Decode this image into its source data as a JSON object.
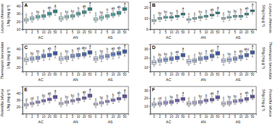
{
  "chart_data": [
    {
      "type": "box",
      "title": "A",
      "species": "Leymus chinensis",
      "ylabel": "LNg (mg g⁻¹)",
      "categories": [
        "0",
        "2",
        "5",
        "10",
        "20",
        "50",
        "0",
        "2",
        "5",
        "10",
        "20",
        "50",
        "0",
        "2",
        "5",
        "10",
        "20",
        "50"
      ],
      "groups": [
        "AC",
        "AN",
        "AS"
      ],
      "ylim": [
        10,
        45
      ],
      "yticks": [
        10,
        20,
        30,
        40
      ],
      "boxes": [
        [
          18,
          20,
          22,
          24,
          26
        ],
        [
          19,
          22,
          24,
          26,
          28
        ],
        [
          22,
          24,
          26,
          28,
          30
        ],
        [
          23,
          25,
          27,
          29,
          31
        ],
        [
          26,
          28,
          30,
          32,
          35
        ],
        [
          28,
          31,
          33,
          35,
          38
        ],
        [
          20,
          22,
          24,
          26,
          28
        ],
        [
          22,
          24,
          26,
          28,
          30
        ],
        [
          23,
          25,
          27,
          29,
          31
        ],
        [
          26,
          28,
          30,
          32,
          34
        ],
        [
          27,
          30,
          32,
          34,
          37
        ],
        [
          31,
          34,
          36,
          38,
          41
        ],
        [
          19,
          21,
          23,
          25,
          28
        ],
        [
          21,
          23,
          25,
          27,
          29
        ],
        [
          23,
          25,
          27,
          29,
          32
        ],
        [
          25,
          27,
          29,
          31,
          34
        ],
        [
          27,
          29,
          31,
          33,
          36
        ],
        [
          31,
          34,
          36,
          38,
          40
        ]
      ],
      "letters": [
        "c",
        "c",
        "bc",
        "b",
        "ab",
        "a",
        "c",
        "bc",
        "bc",
        "b",
        "ab",
        "a",
        "c",
        "bc",
        "b",
        "ab",
        "ab",
        "a"
      ],
      "colors": [
        "#cfeeee",
        "#a9dede",
        "#86cccc",
        "#66bbbb",
        "#4aa9a9",
        "#339696",
        "#cfeeee",
        "#a9dede",
        "#86cccc",
        "#66bbbb",
        "#4aa9a9",
        "#339696",
        "#cfeeee",
        "#a9dede",
        "#86cccc",
        "#66bbbb",
        "#4aa9a9",
        "#339696"
      ]
    },
    {
      "type": "box",
      "title": "B",
      "species": "Leymus chinensis",
      "ylabel": "SNg (mg g⁻¹)",
      "categories": [
        "0",
        "2",
        "5",
        "10",
        "20",
        "50",
        "0",
        "2",
        "5",
        "10",
        "20",
        "50",
        "0",
        "2",
        "5",
        "10",
        "20",
        "50"
      ],
      "groups": [
        "AC",
        "AN",
        "AS"
      ],
      "ylim": [
        0,
        25
      ],
      "yticks": [
        0,
        10,
        20
      ],
      "boxes": [
        [
          5,
          7,
          8,
          9,
          11
        ],
        [
          7,
          9,
          10,
          11,
          13
        ],
        [
          8,
          10,
          11,
          12,
          14
        ],
        [
          8,
          10,
          11,
          12,
          13
        ],
        [
          9,
          11,
          12,
          13,
          15
        ],
        [
          11,
          13,
          14,
          15,
          17
        ],
        [
          6,
          8,
          9,
          10,
          12
        ],
        [
          7,
          9,
          10,
          11,
          13
        ],
        [
          8,
          10,
          11,
          12,
          14
        ],
        [
          9,
          11,
          12,
          13,
          15
        ],
        [
          10,
          12,
          13,
          14,
          16
        ],
        [
          12,
          14,
          15,
          16,
          18
        ],
        [
          7,
          9,
          10,
          11,
          13
        ],
        [
          8,
          10,
          11,
          12,
          14
        ],
        [
          9,
          11,
          12,
          13,
          15
        ],
        [
          9,
          11,
          12,
          13,
          16
        ],
        [
          11,
          13,
          14,
          15,
          17
        ],
        [
          14,
          16,
          17,
          18,
          21
        ]
      ],
      "letters": [
        "c",
        "bc",
        "bc",
        "bc",
        "b",
        "a",
        "c",
        "c",
        "bc",
        "b",
        "ab",
        "a",
        "c",
        "bc",
        "bc",
        "b",
        "ab",
        "a"
      ],
      "colors": [
        "#cfeeee",
        "#a9dede",
        "#86cccc",
        "#66bbbb",
        "#4aa9a9",
        "#339696",
        "#cfeeee",
        "#a9dede",
        "#86cccc",
        "#66bbbb",
        "#4aa9a9",
        "#339696",
        "#cfeeee",
        "#a9dede",
        "#86cccc",
        "#66bbbb",
        "#4aa9a9",
        "#339696"
      ]
    },
    {
      "type": "box",
      "title": "C",
      "species": "Thermopsis lanceolata",
      "ylabel": "LNg (mg g⁻¹)",
      "categories": [
        "0",
        "2",
        "5",
        "10",
        "20",
        "50",
        "0",
        "2",
        "5",
        "10",
        "20",
        "50",
        "0",
        "2",
        "5",
        "10",
        "20",
        "50"
      ],
      "groups": [
        "AC",
        "AN",
        "AS"
      ],
      "ylim": [
        15,
        45
      ],
      "yticks": [
        20,
        30,
        40
      ],
      "boxes": [
        [
          23,
          26,
          28,
          30,
          32
        ],
        [
          25,
          27,
          29,
          31,
          33
        ],
        [
          26,
          28,
          30,
          32,
          35
        ],
        [
          27,
          30,
          32,
          34,
          36
        ],
        [
          28,
          31,
          33,
          35,
          38
        ],
        [
          30,
          33,
          35,
          37,
          40
        ],
        [
          24,
          27,
          29,
          31,
          33
        ],
        [
          26,
          28,
          30,
          32,
          35
        ],
        [
          27,
          30,
          32,
          34,
          36
        ],
        [
          29,
          31,
          33,
          35,
          38
        ],
        [
          30,
          32,
          34,
          36,
          39
        ],
        [
          31,
          34,
          36,
          38,
          41
        ],
        [
          25,
          27,
          29,
          31,
          34
        ],
        [
          26,
          29,
          31,
          33,
          35
        ],
        [
          28,
          30,
          32,
          34,
          37
        ],
        [
          29,
          32,
          34,
          36,
          38
        ],
        [
          30,
          33,
          35,
          37,
          39
        ],
        [
          32,
          35,
          37,
          39,
          42
        ]
      ],
      "letters": [
        "c",
        "bc",
        "bc",
        "b",
        "ab",
        "a",
        "c",
        "bc",
        "b",
        "ab",
        "abc",
        "a",
        "c",
        "bc",
        "b",
        "ab",
        "ab",
        "a"
      ],
      "colors": [
        "#d6e0f5",
        "#b5c6ec",
        "#94ace2",
        "#7692d6",
        "#5b7ac8",
        "#4565b8",
        "#d6e0f5",
        "#b5c6ec",
        "#94ace2",
        "#7692d6",
        "#5b7ac8",
        "#4565b8",
        "#d6e0f5",
        "#b5c6ec",
        "#94ace2",
        "#7692d6",
        "#5b7ac8",
        "#4565b8"
      ]
    },
    {
      "type": "box",
      "title": "D",
      "species": "Thermopsis lanceolata",
      "ylabel": "SNg (mg g⁻¹)",
      "categories": [
        "0",
        "2",
        "5",
        "10",
        "20",
        "50",
        "0",
        "2",
        "5",
        "10",
        "20",
        "50",
        "0",
        "2",
        "5",
        "10",
        "20",
        "50"
      ],
      "groups": [
        "AC",
        "AN",
        "AS"
      ],
      "ylim": [
        5,
        35
      ],
      "yticks": [
        10,
        20,
        30
      ],
      "boxes": [
        [
          11,
          13,
          15,
          17,
          19
        ],
        [
          12,
          15,
          17,
          19,
          21
        ],
        [
          14,
          16,
          18,
          20,
          22
        ],
        [
          14,
          17,
          19,
          21,
          23
        ],
        [
          16,
          18,
          20,
          22,
          24
        ],
        [
          18,
          21,
          23,
          25,
          28
        ],
        [
          12,
          14,
          16,
          18,
          20
        ],
        [
          13,
          15,
          17,
          19,
          21
        ],
        [
          14,
          17,
          19,
          21,
          23
        ],
        [
          16,
          18,
          20,
          22,
          25
        ],
        [
          17,
          20,
          22,
          24,
          26
        ],
        [
          20,
          23,
          25,
          27,
          30
        ],
        [
          12,
          15,
          17,
          19,
          21
        ],
        [
          14,
          16,
          18,
          20,
          22
        ],
        [
          15,
          17,
          19,
          21,
          24
        ],
        [
          17,
          19,
          21,
          23,
          25
        ],
        [
          18,
          21,
          23,
          25,
          27
        ],
        [
          21,
          24,
          26,
          28,
          31
        ]
      ],
      "letters": [
        "c",
        "bc",
        "bc",
        "b",
        "ab",
        "a",
        "c",
        "c",
        "bc",
        "b",
        "ab",
        "a",
        "c",
        "bc",
        "b",
        "ab",
        "abc",
        "a"
      ],
      "colors": [
        "#d6e0f5",
        "#b5c6ec",
        "#94ace2",
        "#7692d6",
        "#5b7ac8",
        "#4565b8",
        "#d6e0f5",
        "#b5c6ec",
        "#94ace2",
        "#7692d6",
        "#5b7ac8",
        "#4565b8",
        "#d6e0f5",
        "#b5c6ec",
        "#94ace2",
        "#7692d6",
        "#5b7ac8",
        "#4565b8"
      ]
    },
    {
      "type": "box",
      "title": "E",
      "species": "Potentilla bifurca",
      "ylabel": "LNg (mg g⁻¹)",
      "categories": [
        "0",
        "2",
        "5",
        "10",
        "20",
        "50",
        "0",
        "2",
        "5",
        "10",
        "20",
        "50",
        "0",
        "2",
        "5",
        "10",
        "20",
        "50"
      ],
      "groups": [
        "AC",
        "AN",
        "AS"
      ],
      "ylim": [
        10,
        50
      ],
      "yticks": [
        20,
        30,
        40
      ],
      "boxes": [
        [
          18,
          21,
          23,
          25,
          28
        ],
        [
          20,
          23,
          25,
          27,
          30
        ],
        [
          22,
          25,
          27,
          29,
          32
        ],
        [
          24,
          27,
          29,
          31,
          34
        ],
        [
          26,
          29,
          31,
          33,
          37
        ],
        [
          29,
          32,
          35,
          37,
          41
        ],
        [
          20,
          23,
          25,
          27,
          30
        ],
        [
          22,
          25,
          27,
          29,
          32
        ],
        [
          24,
          27,
          29,
          31,
          34
        ],
        [
          26,
          29,
          31,
          33,
          36
        ],
        [
          28,
          31,
          33,
          35,
          39
        ],
        [
          31,
          34,
          37,
          39,
          43
        ],
        [
          19,
          22,
          24,
          26,
          29
        ],
        [
          21,
          24,
          26,
          28,
          31
        ],
        [
          23,
          26,
          28,
          30,
          33
        ],
        [
          25,
          28,
          30,
          32,
          35
        ],
        [
          27,
          30,
          32,
          34,
          38
        ],
        [
          30,
          33,
          36,
          38,
          42
        ]
      ],
      "letters": [
        "d",
        "cd",
        "c",
        "bc",
        "ab",
        "a",
        "c",
        "bc",
        "bc",
        "b",
        "ab",
        "a",
        "c",
        "bc",
        "b",
        "b",
        "ab",
        "a"
      ],
      "colors": [
        "#e0dcf3",
        "#c8c0ea",
        "#b0a5e0",
        "#998bd4",
        "#8373c6",
        "#6e5eb6",
        "#e0dcf3",
        "#c8c0ea",
        "#b0a5e0",
        "#998bd4",
        "#8373c6",
        "#6e5eb6",
        "#e0dcf3",
        "#c8c0ea",
        "#b0a5e0",
        "#998bd4",
        "#8373c6",
        "#6e5eb6"
      ]
    },
    {
      "type": "box",
      "title": "F",
      "species": "Potentilla bifurca",
      "ylabel": "SNg (mg g⁻¹)",
      "categories": [
        "0",
        "2",
        "5",
        "10",
        "20",
        "50",
        "0",
        "2",
        "5",
        "10",
        "20",
        "50",
        "0",
        "2",
        "5",
        "10",
        "20",
        "50"
      ],
      "groups": [
        "AC",
        "AN",
        "AS"
      ],
      "ylim": [
        0,
        35
      ],
      "yticks": [
        10,
        20,
        30
      ],
      "boxes": [
        [
          8,
          10,
          12,
          14,
          16
        ],
        [
          9,
          11,
          13,
          15,
          17
        ],
        [
          10,
          12,
          14,
          16,
          18
        ],
        [
          11,
          13,
          15,
          17,
          19
        ],
        [
          13,
          15,
          17,
          19,
          21
        ],
        [
          15,
          17,
          19,
          21,
          24
        ],
        [
          9,
          11,
          13,
          15,
          17
        ],
        [
          10,
          12,
          14,
          16,
          18
        ],
        [
          11,
          13,
          15,
          17,
          20
        ],
        [
          13,
          15,
          17,
          19,
          21
        ],
        [
          14,
          16,
          18,
          20,
          23
        ],
        [
          17,
          19,
          21,
          23,
          26
        ],
        [
          9,
          11,
          13,
          15,
          18
        ],
        [
          10,
          12,
          14,
          16,
          19
        ],
        [
          12,
          14,
          16,
          18,
          20
        ],
        [
          13,
          15,
          17,
          19,
          22
        ],
        [
          15,
          17,
          19,
          21,
          24
        ],
        [
          18,
          20,
          22,
          24,
          28
        ]
      ],
      "letters": [
        "d",
        "cd",
        "c",
        "bc",
        "b",
        "a",
        "c",
        "c",
        "bc",
        "b",
        "ab",
        "a",
        "c",
        "bc",
        "bc",
        "b",
        "ab",
        "a"
      ],
      "colors": [
        "#e0dcf3",
        "#c8c0ea",
        "#b0a5e0",
        "#998bd4",
        "#8373c6",
        "#6e5eb6",
        "#e0dcf3",
        "#c8c0ea",
        "#b0a5e0",
        "#998bd4",
        "#8373c6",
        "#6e5eb6",
        "#e0dcf3",
        "#c8c0ea",
        "#b0a5e0",
        "#998bd4",
        "#8373c6",
        "#6e5eb6"
      ]
    }
  ]
}
